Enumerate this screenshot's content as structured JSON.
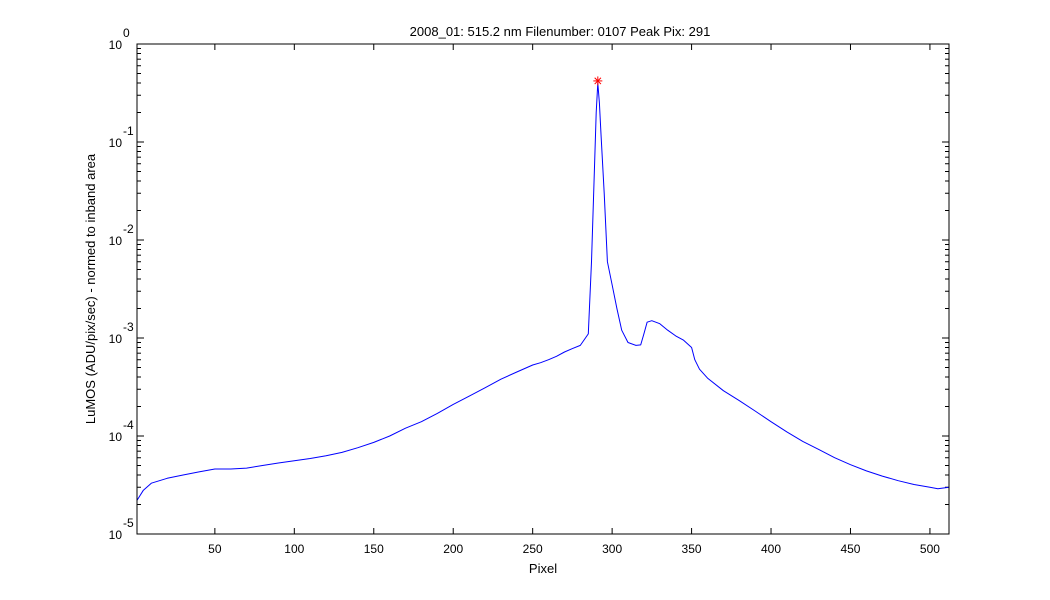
{
  "chart_data": {
    "type": "line",
    "title": "2008_01: 515.2 nm  Filenumber: 0107 Peak Pix: 291",
    "xlabel": "Pixel",
    "ylabel": "LuMOS (ADU/pix/sec) - normed to inband area",
    "xlim": [
      1,
      512
    ],
    "ylim": [
      1e-05,
      1
    ],
    "yscale": "log",
    "grid": false,
    "x_ticks": [
      50,
      100,
      150,
      200,
      250,
      300,
      350,
      400,
      450,
      500
    ],
    "y_ticks": [
      {
        "value": 1,
        "base": "10",
        "exp": "0"
      },
      {
        "value": 0.1,
        "base": "10",
        "exp": "-1"
      },
      {
        "value": 0.01,
        "base": "10",
        "exp": "-2"
      },
      {
        "value": 0.001,
        "base": "10",
        "exp": "-3"
      },
      {
        "value": 0.0001,
        "base": "10",
        "exp": "-4"
      },
      {
        "value": 1e-05,
        "base": "10",
        "exp": "-5"
      }
    ],
    "series": [
      {
        "color": "#0000ff",
        "x": [
          1,
          5,
          10,
          20,
          30,
          40,
          50,
          60,
          70,
          80,
          90,
          100,
          110,
          120,
          130,
          140,
          150,
          160,
          170,
          180,
          190,
          200,
          210,
          220,
          230,
          240,
          250,
          255,
          260,
          265,
          270,
          275,
          280,
          285,
          287,
          289,
          290,
          291,
          292,
          293,
          295,
          297,
          300,
          303,
          306,
          310,
          315,
          318,
          320,
          322,
          325,
          330,
          335,
          340,
          345,
          350,
          352,
          355,
          360,
          370,
          380,
          390,
          400,
          410,
          420,
          430,
          440,
          450,
          460,
          470,
          480,
          490,
          500,
          505,
          512
        ],
        "y": [
          2.2e-05,
          2.8e-05,
          3.3e-05,
          3.7e-05,
          4e-05,
          4.3e-05,
          4.6e-05,
          4.6e-05,
          4.7e-05,
          5e-05,
          5.3e-05,
          5.6e-05,
          5.9e-05,
          6.3e-05,
          6.8e-05,
          7.6e-05,
          8.6e-05,
          0.0001,
          0.00012,
          0.00014,
          0.00017,
          0.00021,
          0.000255,
          0.00031,
          0.00038,
          0.00045,
          0.00053,
          0.00056,
          0.0006,
          0.00065,
          0.00072,
          0.00078,
          0.00084,
          0.0011,
          0.006,
          0.06,
          0.2,
          0.4,
          0.25,
          0.12,
          0.03,
          0.006,
          0.0035,
          0.002,
          0.0012,
          0.0009,
          0.00084,
          0.00085,
          0.0011,
          0.00145,
          0.0015,
          0.0014,
          0.0012,
          0.00105,
          0.00095,
          0.0008,
          0.0006,
          0.00048,
          0.00039,
          0.00029,
          0.00023,
          0.00018,
          0.00014,
          0.00011,
          8.8e-05,
          7.3e-05,
          6e-05,
          5.1e-05,
          4.4e-05,
          3.9e-05,
          3.5e-05,
          3.2e-05,
          3e-05,
          2.9e-05,
          3e-05
        ]
      }
    ],
    "peak_marker": {
      "x": 291,
      "y": 0.42,
      "color": "#ff0000",
      "symbol": "*"
    }
  }
}
